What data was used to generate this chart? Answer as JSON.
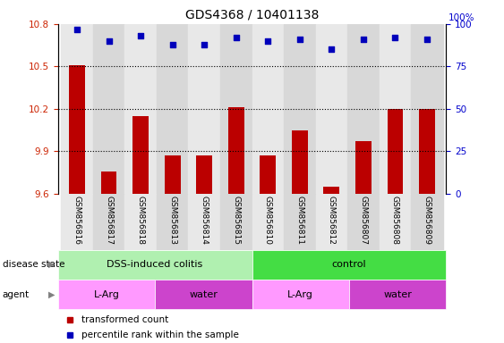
{
  "title": "GDS4368 / 10401138",
  "samples": [
    "GSM856816",
    "GSM856817",
    "GSM856818",
    "GSM856813",
    "GSM856814",
    "GSM856815",
    "GSM856810",
    "GSM856811",
    "GSM856812",
    "GSM856807",
    "GSM856808",
    "GSM856809"
  ],
  "bar_values": [
    10.51,
    9.76,
    10.15,
    9.87,
    9.87,
    10.21,
    9.87,
    10.05,
    9.65,
    9.97,
    10.2,
    10.2
  ],
  "percentile_values": [
    97,
    90,
    93,
    88,
    88,
    92,
    90,
    91,
    85,
    91,
    92,
    91
  ],
  "ylim_left": [
    9.6,
    10.8
  ],
  "ylim_right": [
    0,
    100
  ],
  "yticks_left": [
    9.6,
    9.9,
    10.2,
    10.5,
    10.8
  ],
  "yticks_right": [
    0,
    25,
    50,
    75,
    100
  ],
  "bar_color": "#bb0000",
  "dot_color": "#0000bb",
  "grid_color": "#000000",
  "disease_state_groups": [
    {
      "label": "DSS-induced colitis",
      "start": 0,
      "end": 6,
      "color": "#b0f0b0"
    },
    {
      "label": "control",
      "start": 6,
      "end": 12,
      "color": "#44dd44"
    }
  ],
  "agent_groups": [
    {
      "label": "L-Arg",
      "start": 0,
      "end": 3,
      "color": "#ff99ff"
    },
    {
      "label": "water",
      "start": 3,
      "end": 6,
      "color": "#cc44cc"
    },
    {
      "label": "L-Arg",
      "start": 6,
      "end": 9,
      "color": "#ff99ff"
    },
    {
      "label": "water",
      "start": 9,
      "end": 12,
      "color": "#cc44cc"
    }
  ],
  "legend_items": [
    {
      "label": "transformed count",
      "color": "#bb0000"
    },
    {
      "label": "percentile rank within the sample",
      "color": "#0000bb"
    }
  ],
  "ylabel_left_color": "#cc2200",
  "ylabel_right_color": "#0000cc",
  "col_colors": [
    "#e8e8e8",
    "#d8d8d8"
  ]
}
